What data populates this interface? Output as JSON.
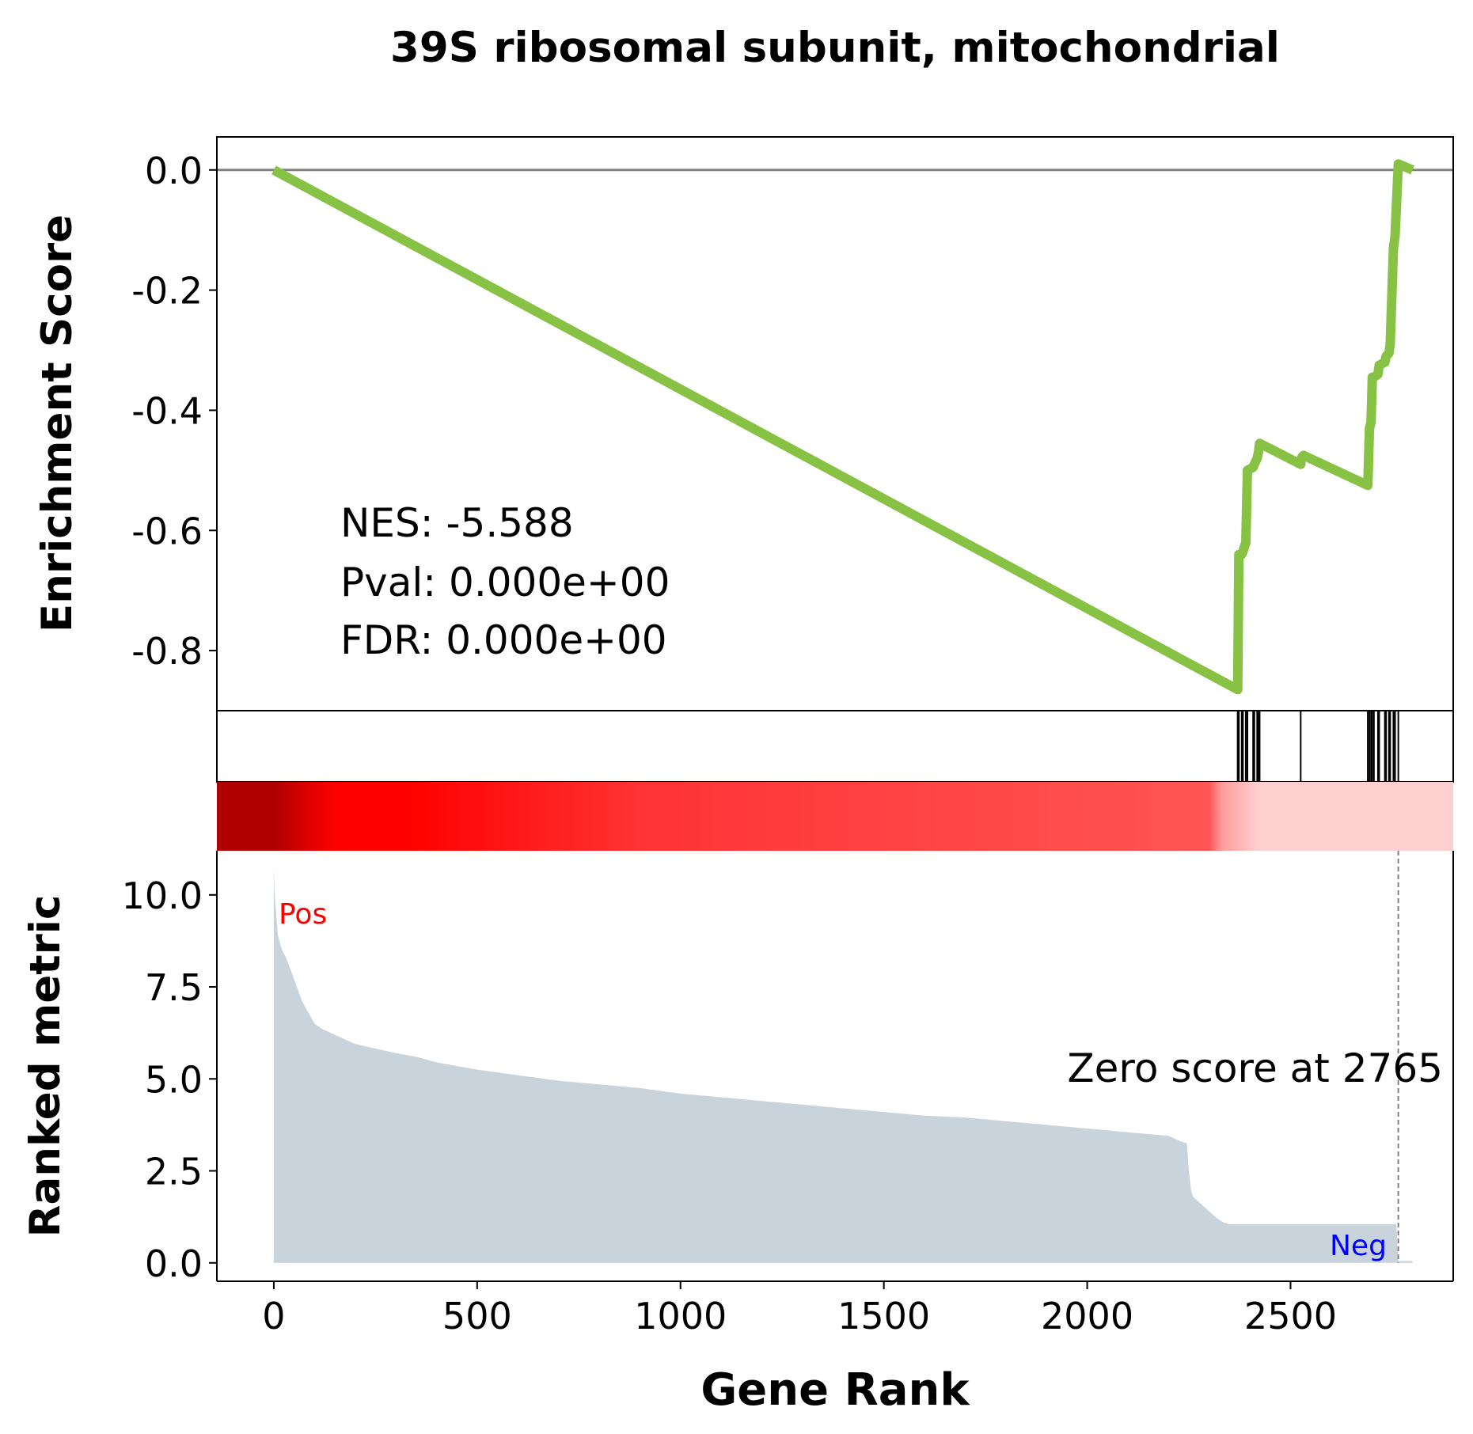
{
  "chart_data": {
    "type": "line",
    "title": "39S ribosomal subunit, mitochondrial",
    "xlabel": "Gene Rank",
    "ylabel_top": "Enrichment Score",
    "ylabel_bottom": "Ranked metric",
    "xlim": [
      -140,
      2900
    ],
    "xticks": [
      0,
      500,
      1000,
      1500,
      2000,
      2500
    ],
    "top_ylim": [
      -0.9,
      0.055
    ],
    "top_yticks": [
      0.0,
      -0.2,
      -0.4,
      -0.6,
      -0.8
    ],
    "top_ytick_labels": [
      "0.0",
      "-0.2",
      "-0.4",
      "-0.6",
      "-0.8"
    ],
    "bottom_ylim": [
      -0.5,
      11.2
    ],
    "bottom_yticks": [
      0.0,
      2.5,
      5.0,
      7.5,
      10.0
    ],
    "bottom_ytick_labels": [
      "0.0",
      "2.5",
      "5.0",
      "7.5",
      "10.0"
    ],
    "stats": {
      "nes": "NES: -5.588",
      "pval": "Pval: 0.000e+00",
      "fdr": "FDR: 0.000e+00"
    },
    "zero_score_label": "Zero score at 2765",
    "zero_score_rank": 2765,
    "pos_label": "Pos",
    "neg_label": "Neg",
    "colors": {
      "es_line": "#88c244",
      "metric_fill": "#c8d3db",
      "zero_line": "#808080",
      "hits": "#000000",
      "pos_text": "#ff0000",
      "neg_text": "#0000ff"
    },
    "es_curve": {
      "x": [
        0,
        2370,
        2373,
        2380,
        2383,
        2390,
        2394,
        2408,
        2411,
        2418,
        2421,
        2424,
        2525,
        2528,
        2532,
        2690,
        2694,
        2698,
        2701,
        2705,
        2715,
        2718,
        2732,
        2735,
        2742,
        2745,
        2753,
        2757,
        2765,
        2800
      ],
      "y": [
        0.0,
        -0.865,
        -0.64,
        -0.64,
        -0.635,
        -0.62,
        -0.5,
        -0.495,
        -0.49,
        -0.48,
        -0.47,
        -0.455,
        -0.49,
        -0.478,
        -0.475,
        -0.525,
        -0.43,
        -0.42,
        -0.345,
        -0.345,
        -0.34,
        -0.325,
        -0.32,
        -0.31,
        -0.305,
        -0.29,
        -0.13,
        -0.11,
        0.01,
        0.0
      ]
    },
    "hit_ranks": [
      2370,
      2373,
      2380,
      2383,
      2390,
      2394,
      2408,
      2411,
      2418,
      2421,
      2424,
      2525,
      2690,
      2694,
      2698,
      2701,
      2705,
      2715,
      2718,
      2732,
      2735,
      2742,
      2745,
      2753,
      2757,
      2765
    ],
    "ranked_metric": {
      "x": [
        0,
        2,
        5,
        10,
        20,
        30,
        40,
        50,
        60,
        70,
        80,
        90,
        100,
        120,
        150,
        200,
        260,
        300,
        350,
        400,
        500,
        600,
        700,
        800,
        900,
        1000,
        1100,
        1200,
        1300,
        1400,
        1500,
        1600,
        1700,
        1800,
        1900,
        2000,
        2100,
        2200,
        2230,
        2245,
        2250,
        2255,
        2260,
        2280,
        2300,
        2320,
        2335,
        2350,
        2760,
        2765,
        2800
      ],
      "y": [
        10.75,
        10.0,
        9.6,
        8.9,
        8.5,
        8.3,
        8.0,
        7.7,
        7.4,
        7.1,
        6.9,
        6.7,
        6.5,
        6.35,
        6.2,
        5.95,
        5.8,
        5.7,
        5.6,
        5.45,
        5.25,
        5.1,
        4.95,
        4.85,
        4.75,
        4.6,
        4.5,
        4.4,
        4.3,
        4.2,
        4.1,
        4.0,
        3.95,
        3.85,
        3.75,
        3.65,
        3.55,
        3.45,
        3.3,
        3.25,
        2.5,
        2.0,
        1.8,
        1.6,
        1.4,
        1.2,
        1.1,
        1.05,
        1.05,
        0.05,
        0.05
      ]
    },
    "color_band_stops": [
      {
        "rank": 0,
        "color": "#b00000"
      },
      {
        "rank": 150,
        "color": "#ff0000"
      },
      {
        "rank": 330,
        "color": "#ff0000"
      },
      {
        "rank": 900,
        "color": "#ff3333"
      },
      {
        "rank": 2300,
        "color": "#ff5555"
      },
      {
        "rank": 2330,
        "color": "#ff9a9a"
      },
      {
        "rank": 2420,
        "color": "#ffd0d0"
      },
      {
        "rank": 2900,
        "color": "#ffd0d0"
      }
    ]
  }
}
